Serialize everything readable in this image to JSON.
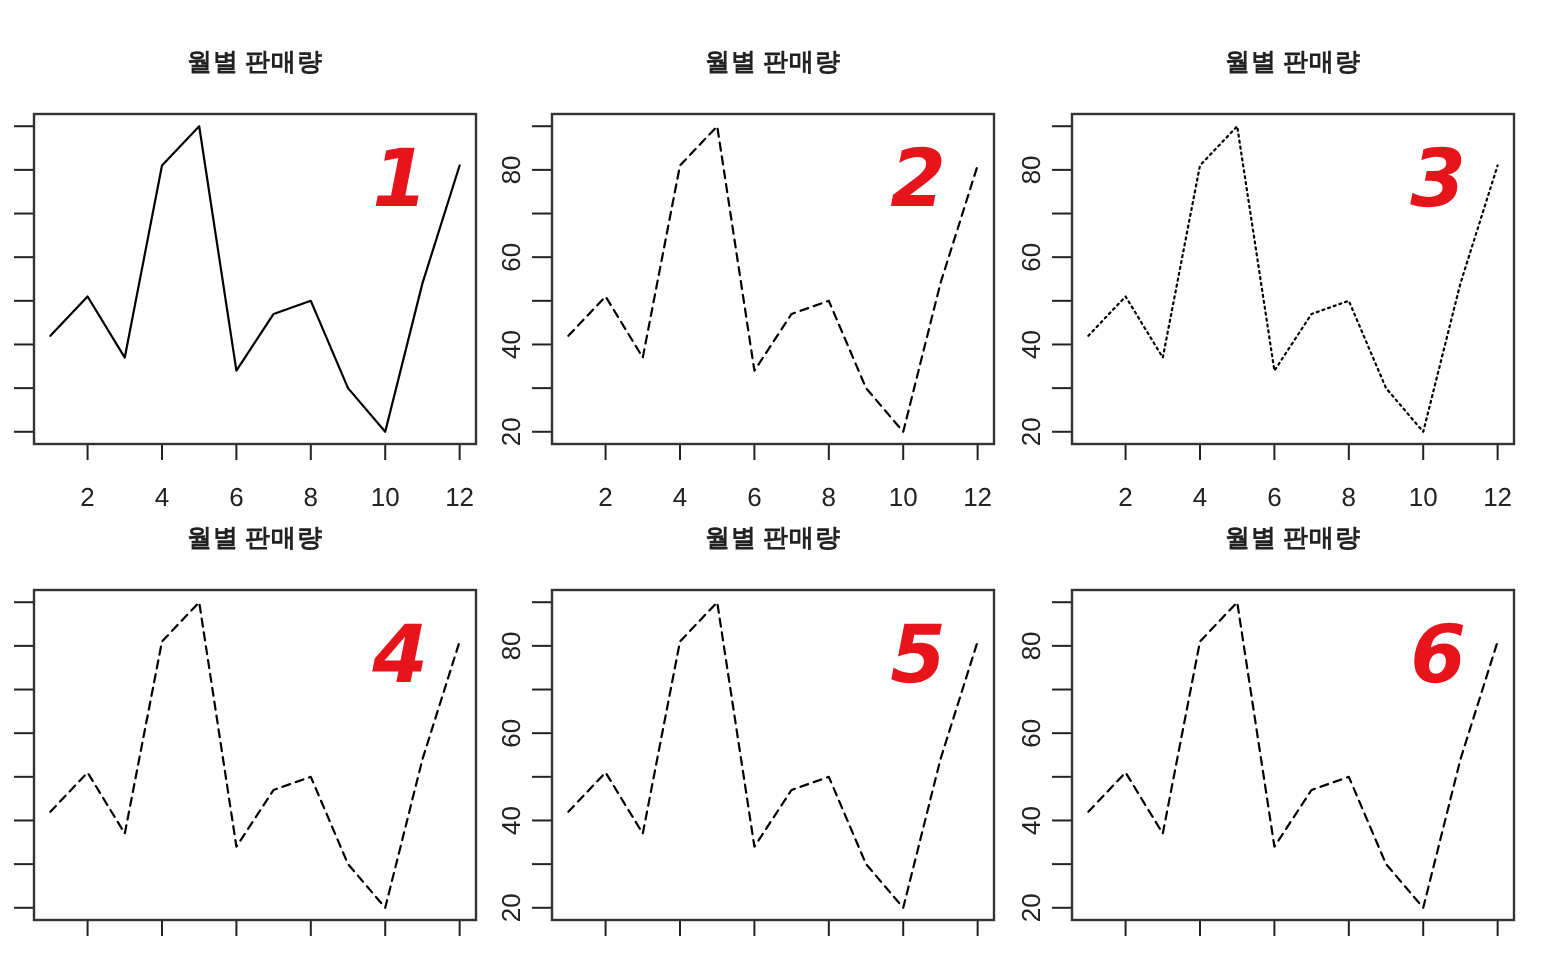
{
  "chart_data": [
    {
      "type": "line",
      "title": "월별 판매량",
      "x": [
        1,
        2,
        3,
        4,
        5,
        6,
        7,
        8,
        9,
        10,
        11,
        12
      ],
      "values": [
        42,
        51,
        37,
        81,
        90,
        34,
        47,
        50,
        30,
        20,
        54,
        81
      ],
      "color": "#000000",
      "line_style": "solid",
      "xlim": [
        0.56,
        12.44
      ],
      "xticks": [
        2,
        4,
        6,
        8,
        10,
        12
      ],
      "ylim": [
        17.2,
        92.8
      ],
      "yticks": [
        20,
        {
          "value": 30,
          "label": null
        },
        40,
        {
          "value": 50,
          "label": null
        },
        60,
        {
          "value": 70,
          "label": null
        },
        80,
        {
          "value": 90,
          "label": null
        }
      ],
      "tick_labels": "x",
      "annotations": [
        "1"
      ]
    },
    {
      "type": "line",
      "title": "월별 판매량",
      "x": [
        1,
        2,
        3,
        4,
        5,
        6,
        7,
        8,
        9,
        10,
        11,
        12
      ],
      "values": [
        42,
        51,
        37,
        81,
        90,
        34,
        47,
        50,
        30,
        20,
        54,
        81
      ],
      "color": "#000000",
      "line_style": "dashed",
      "xlim": [
        0.56,
        12.44
      ],
      "xticks": [
        2,
        4,
        6,
        8,
        10,
        12
      ],
      "ylim": [
        17.2,
        92.8
      ],
      "yticks": [
        20,
        {
          "value": 30,
          "label": null
        },
        40,
        {
          "value": 50,
          "label": null
        },
        60,
        {
          "value": 70,
          "label": null
        },
        80,
        {
          "value": 90,
          "label": null
        }
      ],
      "annotations": [
        "2"
      ]
    },
    {
      "type": "line",
      "title": "월별 판매량",
      "x": [
        1,
        2,
        3,
        4,
        5,
        6,
        7,
        8,
        9,
        10,
        11,
        12
      ],
      "values": [
        42,
        51,
        37,
        81,
        90,
        34,
        47,
        50,
        30,
        20,
        54,
        81
      ],
      "color": "#000000",
      "line_style": "dotted",
      "xlim": [
        0.56,
        12.44
      ],
      "xticks": [
        2,
        4,
        6,
        8,
        10,
        12
      ],
      "ylim": [
        17.2,
        92.8
      ],
      "yticks": [
        20,
        {
          "value": 30,
          "label": null
        },
        40,
        {
          "value": 50,
          "label": null
        },
        60,
        {
          "value": 70,
          "label": null
        },
        80,
        {
          "value": 90,
          "label": null
        }
      ],
      "annotations": [
        "3"
      ]
    },
    {
      "type": "line",
      "title": "월별 판매량",
      "x": [
        1,
        2,
        3,
        4,
        5,
        6,
        7,
        8,
        9,
        10,
        11,
        12
      ],
      "values": [
        42,
        51,
        37,
        81,
        90,
        34,
        47,
        50,
        30,
        20,
        54,
        81
      ],
      "color": "#000000",
      "line_style": "dashed",
      "xlim": [
        0.56,
        12.44
      ],
      "xticks": [
        {
          "value": 2,
          "label": null
        },
        {
          "value": 4,
          "label": null
        },
        {
          "value": 6,
          "label": null
        },
        {
          "value": 8,
          "label": null
        },
        {
          "value": 10,
          "label": null
        },
        {
          "value": 12,
          "label": null
        }
      ],
      "ylim": [
        17.2,
        92.8
      ],
      "yticks": [
        {
          "value": 20,
          "label": null
        },
        {
          "value": 30,
          "label": null
        },
        {
          "value": 40,
          "label": null
        },
        {
          "value": 50,
          "label": null
        },
        {
          "value": 60,
          "label": null
        },
        {
          "value": 70,
          "label": null
        },
        {
          "value": 80,
          "label": null
        },
        {
          "value": 90,
          "label": null
        }
      ],
      "tick_labels": false,
      "annotations": [
        "4"
      ]
    },
    {
      "type": "line",
      "title": "월별 판매량",
      "x": [
        1,
        2,
        3,
        4,
        5,
        6,
        7,
        8,
        9,
        10,
        11,
        12
      ],
      "values": [
        42,
        51,
        37,
        81,
        90,
        34,
        47,
        50,
        30,
        20,
        54,
        81
      ],
      "color": "#000000",
      "line_style": "dashed",
      "xlim": [
        0.56,
        12.44
      ],
      "xticks": [
        {
          "value": 2,
          "label": null
        },
        {
          "value": 4,
          "label": null
        },
        {
          "value": 6,
          "label": null
        },
        {
          "value": 8,
          "label": null
        },
        {
          "value": 10,
          "label": null
        },
        {
          "value": 12,
          "label": null
        }
      ],
      "ylim": [
        17.2,
        92.8
      ],
      "yticks": [
        20,
        {
          "value": 30,
          "label": null
        },
        40,
        {
          "value": 50,
          "label": null
        },
        60,
        {
          "value": 70,
          "label": null
        },
        80,
        {
          "value": 90,
          "label": null
        }
      ],
      "tick_labels": "y",
      "annotations": [
        "5"
      ]
    },
    {
      "type": "line",
      "title": "월별 판매량",
      "x": [
        1,
        2,
        3,
        4,
        5,
        6,
        7,
        8,
        9,
        10,
        11,
        12
      ],
      "values": [
        42,
        51,
        37,
        81,
        90,
        34,
        47,
        50,
        30,
        20,
        54,
        81
      ],
      "color": "#000000",
      "line_style": "dashed",
      "xlim": [
        0.56,
        12.44
      ],
      "xticks": [
        {
          "value": 2,
          "label": null
        },
        {
          "value": 4,
          "label": null
        },
        {
          "value": 6,
          "label": null
        },
        {
          "value": 8,
          "label": null
        },
        {
          "value": 10,
          "label": null
        },
        {
          "value": 12,
          "label": null
        }
      ],
      "ylim": [
        17.2,
        92.8
      ],
      "yticks": [
        20,
        {
          "value": 30,
          "label": null
        },
        40,
        {
          "value": 50,
          "label": null
        },
        60,
        {
          "value": 70,
          "label": null
        },
        80,
        {
          "value": 90,
          "label": null
        }
      ],
      "tick_labels": "y",
      "annotations": [
        "6"
      ]
    }
  ]
}
